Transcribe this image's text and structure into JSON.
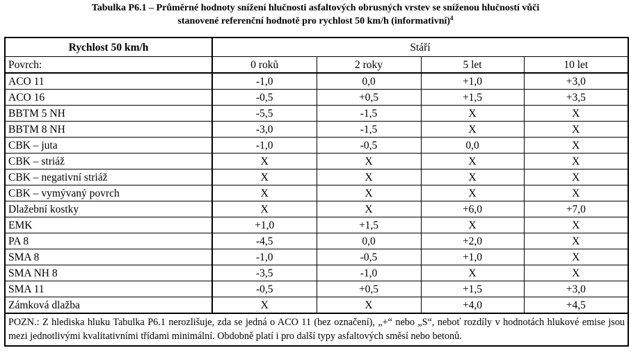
{
  "caption": {
    "line1": "Tabulka P6.1 – Průměrné hodnoty snížení hlučnosti asfaltových obrusných vrstev se sníženou hlučností vůči",
    "line2": "stanovené referenční hodnotě pro rychlost 50 km/h (informativní)",
    "footnote_ref": "4"
  },
  "table": {
    "speed_header": "Rychlost 50 km/h",
    "age_header": "Stáří",
    "surface_header": "Povrch:",
    "age_columns": [
      "0 roků",
      "2 roky",
      "5 let",
      "10 let"
    ],
    "rows": [
      {
        "surface": "ACO 11",
        "values": [
          "-1,0",
          "0,0",
          "+1,0",
          "+3,0"
        ]
      },
      {
        "surface": "ACO 16",
        "values": [
          "-0,5",
          "+0,5",
          "+1,5",
          "+3,5"
        ]
      },
      {
        "surface": "BBTM 5 NH",
        "values": [
          "-5,5",
          "-1,5",
          "X",
          "X"
        ]
      },
      {
        "surface": "BBTM 8 NH",
        "values": [
          "-3,0",
          "-1,5",
          "X",
          "X"
        ]
      },
      {
        "surface": "CBK – juta",
        "values": [
          "-1,0",
          "-0,5",
          "0,0",
          "X"
        ]
      },
      {
        "surface": "CBK – striáž",
        "values": [
          "X",
          "X",
          "X",
          "X"
        ]
      },
      {
        "surface": "CBK – negativní striáž",
        "values": [
          "X",
          "X",
          "X",
          "X"
        ]
      },
      {
        "surface": "CBK – vymývaný povrch",
        "values": [
          "X",
          "X",
          "X",
          "X"
        ]
      },
      {
        "surface": "Dlažební kostky",
        "values": [
          "X",
          "X",
          "+6,0",
          "+7,0"
        ]
      },
      {
        "surface": "EMK",
        "values": [
          "+1,0",
          "+1,5",
          "X",
          "X"
        ]
      },
      {
        "surface": "PA 8",
        "values": [
          "-4,5",
          "0,0",
          "+2,0",
          "X"
        ]
      },
      {
        "surface": "SMA 8",
        "values": [
          "-1,0",
          "-0,5",
          "+1,0",
          "X"
        ]
      },
      {
        "surface": "SMA NH 8",
        "values": [
          "-3,5",
          "-1,0",
          "X",
          "X"
        ]
      },
      {
        "surface": "SMA 11",
        "values": [
          "-0,5",
          "+0,5",
          "+1,5",
          "+3,0"
        ]
      },
      {
        "surface": "Zámková dlažba",
        "values": [
          "X",
          "X",
          "+4,0",
          "+4,5"
        ]
      }
    ],
    "note": "POZN.: Z hlediska hluku Tabulka P6.1 nerozlišuje, zda se jedná o ACO 11 (bez označení), „+“ nebo „S“, neboť rozdíly v hodnotách hlukové emise jsou mezi jednotlivými kvalitativními třídami minimální. Obdobně platí i pro další typy asfaltových směsí nebo betonů."
  }
}
